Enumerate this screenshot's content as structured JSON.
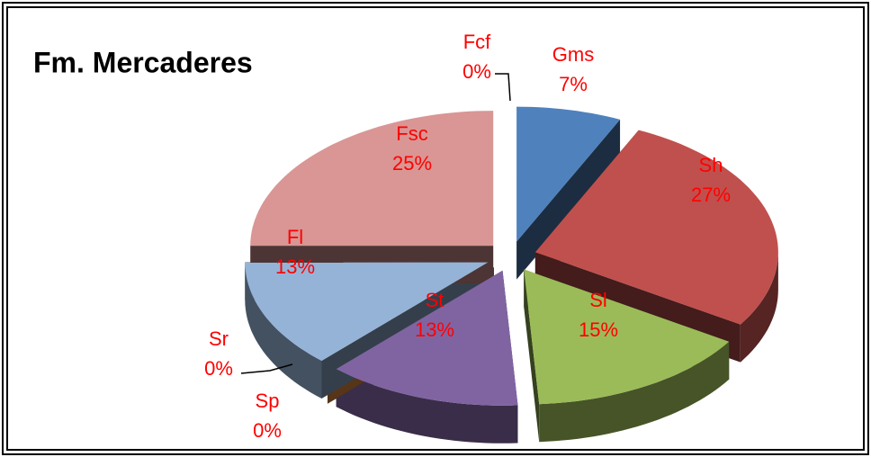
{
  "chart_data": {
    "type": "pie3d",
    "title": "Fm. Mercaderes",
    "categories": [
      "Gms",
      "Sh",
      "Sl",
      "St",
      "Sp",
      "Sr",
      "Fl",
      "Fsc",
      "Fcf"
    ],
    "values": [
      7,
      27,
      15,
      13,
      0,
      0,
      13,
      25,
      0
    ],
    "value_labels": [
      "7%",
      "27%",
      "15%",
      "13%",
      "0%",
      "0%",
      "13%",
      "25%",
      "0%"
    ],
    "colors": [
      "#4f81bd",
      "#c0504d",
      "#9bbb59",
      "#8064a2",
      "#b8732e",
      "#f79646",
      "#95b3d7",
      "#d99694",
      "#4bacc6"
    ]
  }
}
